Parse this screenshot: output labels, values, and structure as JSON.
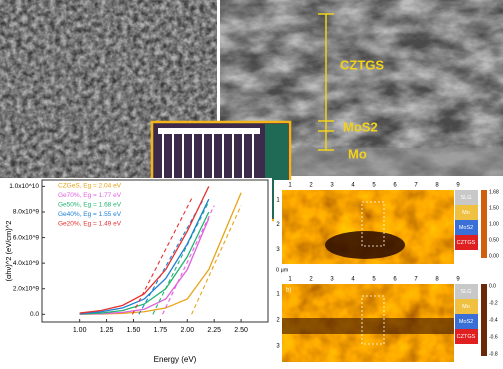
{
  "sem_labels": {
    "thick": "CZTGS",
    "mid": "MoS2",
    "bottom": "Mo"
  },
  "chart_data": {
    "type": "line",
    "xlabel": "Energy (eV)",
    "ylabel": "(αhν)^2 (eV/cm)^2",
    "x": [
      1.0,
      1.2,
      1.4,
      1.6,
      1.8,
      2.0,
      2.2,
      2.4,
      2.5
    ],
    "xlim": [
      0.65,
      2.75
    ],
    "xticks": [
      {
        "value": 1.0,
        "label": "1.00"
      },
      1.25,
      {
        "value": 1.5,
        "label": "1.50"
      },
      1.75,
      {
        "value": 2.0,
        "label": "2.00"
      },
      2.25,
      {
        "value": 2.5,
        "label": "2.50"
      }
    ],
    "ylim": [
      -600000000,
      10500000000
    ],
    "yticks": [
      {
        "value": 0,
        "label": "0.0"
      },
      {
        "value": 2000000000,
        "label": "2.0x10^9"
      },
      {
        "value": 4000000000,
        "label": "4.0x10^9"
      },
      {
        "value": 6000000000,
        "label": "6.0x10^9"
      },
      {
        "value": 8000000000,
        "label": "8.0x10^9"
      },
      {
        "value": 10000000000,
        "label": "1.0x10^10"
      }
    ],
    "series": [
      {
        "name": "CZGeS, Eg = 2.04 eV",
        "color": "#e8a317",
        "values": [
          10000000,
          30000000,
          80000000,
          200000000,
          500000000,
          1200000000,
          3500000000,
          7500000000,
          9500000000
        ],
        "fit_x": [
          2.04,
          2.5
        ],
        "fit_y": [
          0,
          8500000000
        ]
      },
      {
        "name": "Ge70%, Eg = 1.77 eV",
        "color": "#e060e0",
        "values": [
          20000000,
          50000000,
          150000000,
          400000000,
          1200000000,
          3500000000,
          7500000000,
          null,
          null
        ],
        "fit_x": [
          1.77,
          2.25
        ],
        "fit_y": [
          0,
          8500000000
        ]
      },
      {
        "name": "Ge50%, Eg = 1.68 eV",
        "color": "#22b573",
        "values": [
          30000000,
          100000000,
          300000000,
          800000000,
          2000000000,
          4500000000,
          8000000000,
          null,
          null
        ],
        "fit_x": [
          1.68,
          2.2
        ],
        "fit_y": [
          0,
          8800000000
        ]
      },
      {
        "name": "Ge40%, Eg = 1.55 eV",
        "color": "#1c7fd6",
        "values": [
          50000000,
          200000000,
          500000000,
          1200000000,
          2800000000,
          5500000000,
          9000000000,
          null,
          null
        ],
        "fit_x": [
          1.55,
          2.15
        ],
        "fit_y": [
          0,
          9000000000
        ]
      },
      {
        "name": "Ge20%, Eg = 1.49 eV",
        "color": "#e83030",
        "values": [
          100000000,
          300000000,
          700000000,
          1600000000,
          3500000000,
          6500000000,
          10000000000,
          null,
          null
        ],
        "fit_x": [
          1.49,
          2.05
        ],
        "fit_y": [
          0,
          9200000000
        ]
      }
    ]
  },
  "maps": {
    "top_ticks": [
      "1",
      "2",
      "3",
      "4",
      "5",
      "6",
      "7",
      "8",
      "9"
    ],
    "side_ticks": [
      "1",
      "2",
      "3"
    ],
    "unit": "0 µm",
    "panel_b": "b)",
    "layers": [
      "SLG",
      "Mo",
      "MoS2",
      "CZTGS"
    ],
    "bar_a": [
      "1.68",
      "1.50",
      "1.00",
      "0.50",
      "0.00"
    ],
    "bar_b": [
      "0.0",
      "-0.2",
      "-0.4",
      "-0.6",
      "-0.8"
    ]
  }
}
